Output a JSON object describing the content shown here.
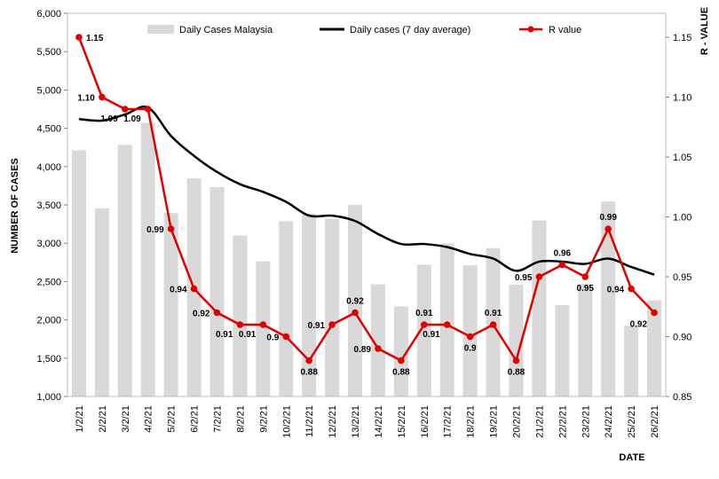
{
  "chart_data": {
    "type": "bar",
    "xlabel": "DATE",
    "ylabel": "NUMBER  OF CASES",
    "y2label": "R - VALUE",
    "ylim": [
      1000,
      6000
    ],
    "y2lim": [
      0.85,
      1.17
    ],
    "yticks": [
      "1,000",
      "1,500",
      "2,000",
      "2,500",
      "3,000",
      "3,500",
      "4,000",
      "4,500",
      "5,000",
      "5,500",
      "6,000"
    ],
    "y2ticks": [
      "0.85",
      "0.90",
      "0.95",
      "1.00",
      "1.05",
      "1.10",
      "1.15"
    ],
    "grid": false,
    "legend_position": "top",
    "categories": [
      "1/2/21",
      "2/2/21",
      "3/2/21",
      "4/2/21",
      "5/2/21",
      "6/2/21",
      "7/2/21",
      "8/2/21",
      "9/2/21",
      "10/2/21",
      "11/2/21",
      "12/2/21",
      "13/2/21",
      "14/2/21",
      "15/2/21",
      "16/2/21",
      "17/2/21",
      "18/2/21",
      "19/2/21",
      "20/2/21",
      "21/2/21",
      "22/2/21",
      "23/2/21",
      "24/2/21",
      "25/2/21",
      "26/2/21"
    ],
    "series": [
      {
        "name": "Daily Cases Malaysia",
        "type": "bar",
        "color": "#d9d9d9",
        "values": [
          4214,
          3455,
          4284,
          4571,
          3394,
          3847,
          3731,
          3100,
          2764,
          3288,
          3384,
          3318,
          3499,
          2464,
          2176,
          2720,
          2998,
          2712,
          2936,
          2461,
          3297,
          2192,
          2468,
          3545,
          1924,
          2253
        ]
      },
      {
        "name": "Daily cases (7 day average)",
        "type": "line",
        "color": "#000000",
        "values": [
          4620,
          4600,
          4680,
          4770,
          4400,
          4140,
          3930,
          3770,
          3670,
          3540,
          3360,
          3360,
          3290,
          3120,
          2990,
          2990,
          2950,
          2860,
          2800,
          2640,
          2760,
          2760,
          2730,
          2800,
          2690,
          2590
        ]
      },
      {
        "name": "R value",
        "type": "line",
        "axis": "right",
        "color": "#e00000",
        "values": [
          1.15,
          1.1,
          1.09,
          1.09,
          0.99,
          0.94,
          0.92,
          0.91,
          0.91,
          0.9,
          0.88,
          0.91,
          0.92,
          0.89,
          0.88,
          0.91,
          0.91,
          0.9,
          0.91,
          0.88,
          0.95,
          0.96,
          0.95,
          0.99,
          0.94,
          0.92
        ],
        "labels": [
          "1.15",
          "1.10",
          "1.09",
          "1.09",
          "0.99",
          "0.94",
          "0.92",
          "0.91",
          "0.91",
          "0.9",
          "0.88",
          "0.91",
          "0.92",
          "0.89",
          "0.88",
          "0.91",
          "0.91",
          "0.9",
          "0.91",
          "0.88",
          "0.95",
          "0.96",
          "0.95",
          "0.99",
          "0.94",
          "0.92"
        ]
      }
    ]
  }
}
